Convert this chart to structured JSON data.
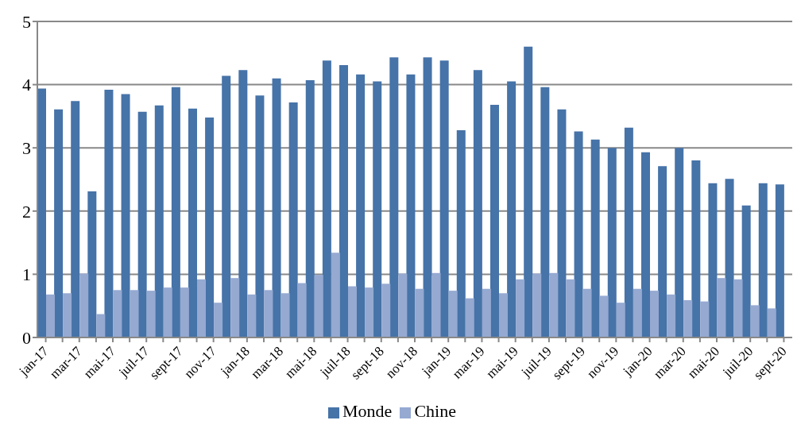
{
  "chart_data": {
    "type": "bar",
    "categories": [
      "jan-17",
      null,
      "mar-17",
      null,
      "mai-17",
      null,
      "juil-17",
      null,
      "sept-17",
      null,
      "nov-17",
      null,
      "jan-18",
      null,
      "mar-18",
      null,
      "mai-18",
      null,
      "juil-18",
      null,
      "sept-18",
      null,
      "nov-18",
      null,
      "jan-19",
      null,
      "mar-19",
      null,
      "mai-19",
      null,
      "juil-19",
      null,
      "sept-19",
      null,
      "nov-19",
      null,
      "jan-20",
      null,
      "mar-20",
      null,
      "mai-20",
      null,
      "juil-20",
      null,
      "sept-20"
    ],
    "series": [
      {
        "name": "Monde",
        "color": "#4673a8",
        "values": [
          3.94,
          3.61,
          3.74,
          2.31,
          3.92,
          3.85,
          3.57,
          3.67,
          3.96,
          3.62,
          3.48,
          4.14,
          4.23,
          3.83,
          4.1,
          3.72,
          4.07,
          4.38,
          4.31,
          4.16,
          4.05,
          4.43,
          4.16,
          4.43,
          4.38,
          3.28,
          4.23,
          3.68,
          4.05,
          4.6,
          3.96,
          3.61,
          3.26,
          3.13,
          3.0,
          3.32,
          2.93,
          2.71,
          3.0,
          2.8,
          2.44,
          2.51,
          2.09,
          2.44,
          2.42
        ]
      },
      {
        "name": "Chine",
        "color": "#95a9d1",
        "values": [
          0.68,
          0.7,
          1.01,
          0.37,
          0.75,
          0.75,
          0.74,
          0.79,
          0.79,
          0.92,
          0.55,
          0.94,
          0.68,
          0.75,
          0.7,
          0.86,
          0.99,
          1.34,
          0.81,
          0.79,
          0.85,
          1.01,
          0.77,
          1.02,
          0.74,
          0.62,
          0.77,
          0.7,
          0.92,
          1.01,
          1.02,
          0.92,
          0.77,
          0.66,
          0.55,
          0.77,
          0.74,
          0.68,
          0.59,
          0.57,
          0.94,
          0.92,
          0.51,
          0.46,
          null
        ]
      }
    ],
    "ylim": [
      0,
      5
    ],
    "yticks": [
      0,
      1,
      2,
      3,
      4,
      5
    ],
    "grid": "y",
    "legend": "bottom"
  }
}
